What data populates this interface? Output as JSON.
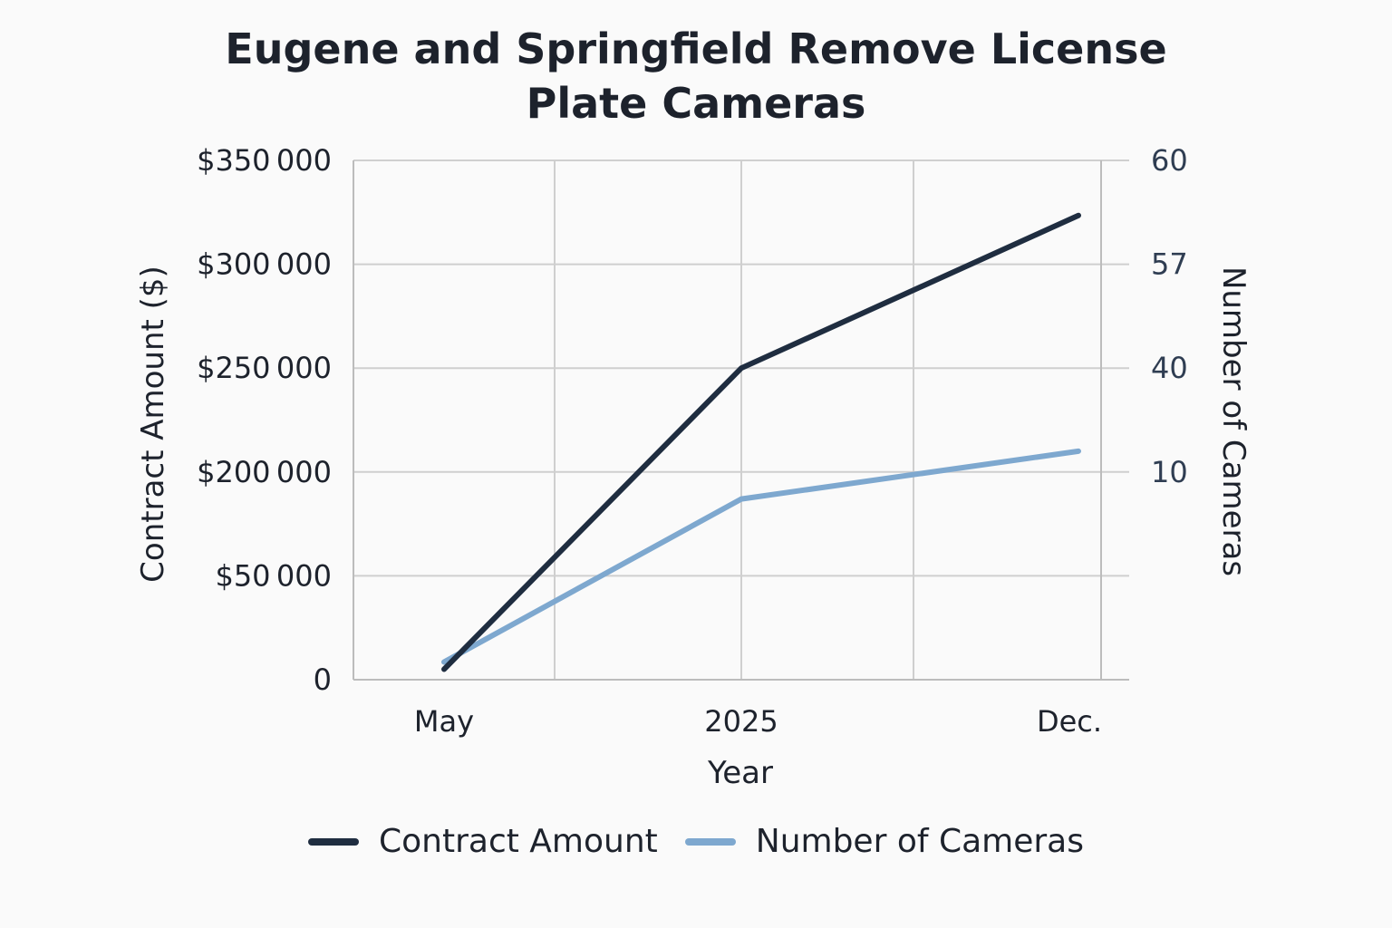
{
  "chart_data": {
    "type": "line",
    "title_lines": [
      "Eugene and Springfield Remove License",
      "Plate Cameras"
    ],
    "xlabel": "Year",
    "ylabel_left": "Contract Amount ($)",
    "ylabel_right": "Number of Cameras",
    "categories": [
      "May",
      "2025",
      "Dec."
    ],
    "left_ticks": [
      {
        "label": "0",
        "value": 0
      },
      {
        "label": "$50 000",
        "value": 50000
      },
      {
        "label": "$200 000",
        "value": 200000
      },
      {
        "label": "$250 000",
        "value": 250000
      },
      {
        "label": "$300 000",
        "value": 300000
      },
      {
        "label": "$350 000",
        "value": 350000
      }
    ],
    "right_ticks": [
      {
        "label": "60",
        "level": 5
      },
      {
        "label": "57",
        "level": 4
      },
      {
        "label": "40",
        "level": 3
      },
      {
        "label": "10",
        "level": 2
      }
    ],
    "series": [
      {
        "name": "Contract Amount",
        "color": "#1f2d40",
        "axis": "left",
        "points": [
          {
            "x": 0,
            "y": 0.1
          },
          {
            "x": 1,
            "y": 3.0
          },
          {
            "x": 2,
            "y": 4.47
          }
        ]
      },
      {
        "name": "Number of Cameras",
        "color": "#7ea8cf",
        "axis": "right",
        "points": [
          {
            "x": 0,
            "y": 0.17
          },
          {
            "x": 1,
            "y": 1.74
          },
          {
            "x": 2,
            "y": 2.2
          }
        ]
      }
    ],
    "legend": [
      "Contract Amount",
      "Number of Cameras"
    ]
  }
}
